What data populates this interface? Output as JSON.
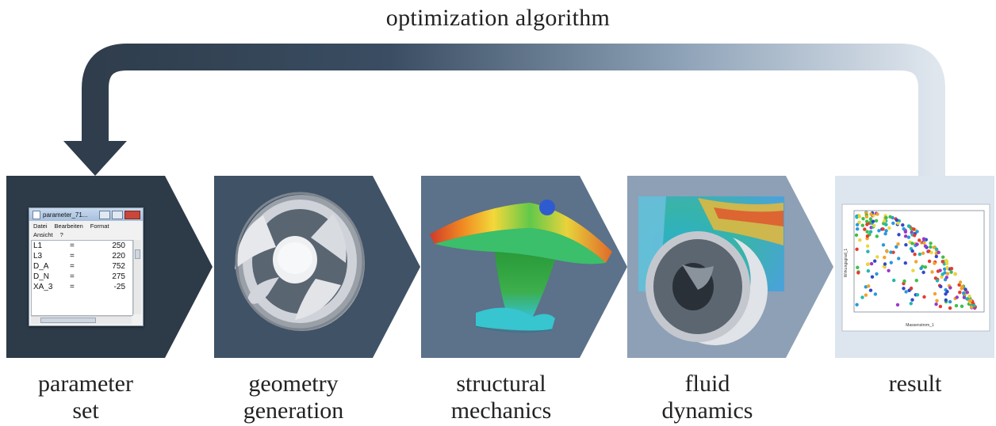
{
  "title": "optimization algorithm",
  "steps": [
    {
      "label_line1": "parameter",
      "label_line2": "set",
      "color": "#2d3a48"
    },
    {
      "label_line1": "geometry",
      "label_line2": "generation",
      "color": "#3f5266"
    },
    {
      "label_line1": "structural",
      "label_line2": "mechanics",
      "color": "#5c718a"
    },
    {
      "label_line1": "fluid",
      "label_line2": "dynamics",
      "color": "#8da0b6"
    },
    {
      "label_line1": "result",
      "label_line2": "",
      "color": "#dde5ee"
    }
  ],
  "parameter_window": {
    "title": "parameter_71...",
    "menu": [
      "Datei",
      "Bearbeiten",
      "Format",
      "Ansicht",
      "?"
    ],
    "rows": [
      {
        "name": "L1",
        "eq": "=",
        "value": "250"
      },
      {
        "name": "L3",
        "eq": "=",
        "value": "220"
      },
      {
        "name": "D_A",
        "eq": "=",
        "value": "752"
      },
      {
        "name": "D_N",
        "eq": "=",
        "value": "275"
      },
      {
        "name": "XA_3",
        "eq": "=",
        "value": "-25"
      }
    ]
  },
  "result_plot": {
    "xlabel": "Massenstrom_1",
    "ylabel": "Wirkungsgrad_1"
  }
}
